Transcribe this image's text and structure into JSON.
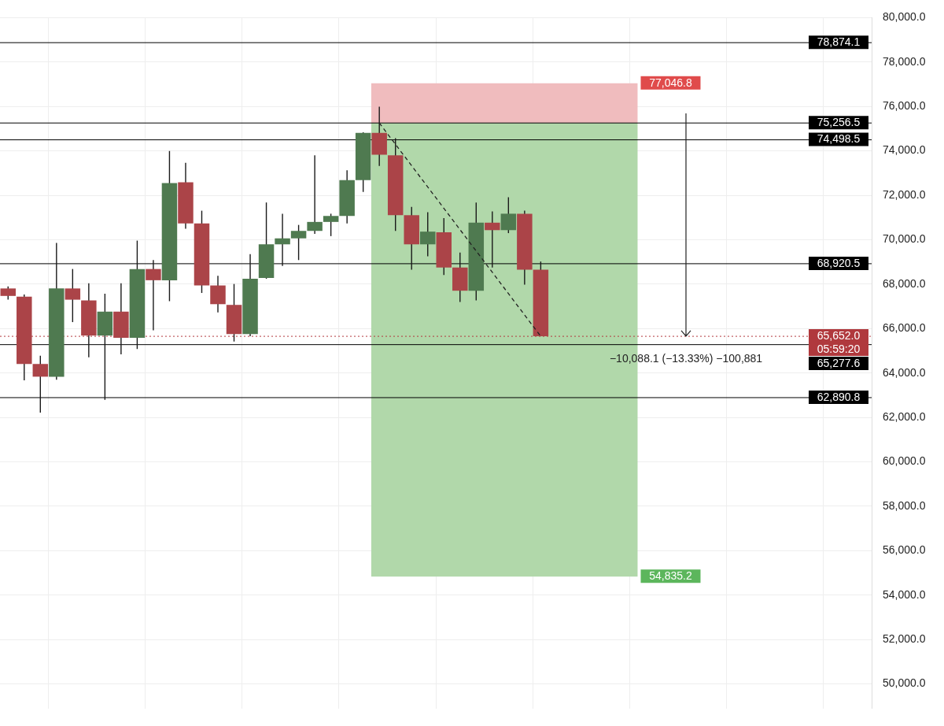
{
  "chart_data": {
    "type": "candlestick",
    "categories": [
      null,
      null,
      null,
      null,
      null,
      null,
      null,
      null,
      null,
      null,
      null,
      null,
      null,
      null,
      null,
      null,
      null,
      null,
      null,
      null,
      null,
      null,
      null,
      null,
      null,
      null,
      null,
      null,
      null,
      null,
      null,
      null,
      null,
      null,
      null,
      null,
      null,
      null,
      null,
      null,
      null,
      null,
      null,
      null,
      null,
      null,
      null,
      null,
      null,
      null,
      null,
      null,
      null,
      null
    ],
    "ohlc": [
      [
        67806,
        67900,
        67300,
        67470
      ],
      [
        67436,
        67537,
        63666,
        64406
      ],
      [
        64406,
        64776,
        62219,
        63834
      ],
      [
        63834,
        69860,
        63700,
        67806
      ],
      [
        67806,
        68682,
        66291,
        67301
      ],
      [
        67268,
        68042,
        64709,
        65686
      ],
      [
        65686,
        67571,
        62791,
        66763
      ],
      [
        66763,
        68042,
        64844,
        65585
      ],
      [
        65585,
        69960,
        65080,
        68682
      ],
      [
        68682,
        69085,
        65921,
        68177
      ],
      [
        68177,
        73999,
        67234,
        72552
      ],
      [
        72586,
        73461,
        70499,
        70735
      ],
      [
        70735,
        71307,
        67604,
        67941
      ],
      [
        67941,
        68379,
        66729,
        67099
      ],
      [
        67066,
        68008,
        65417,
        65753
      ],
      [
        65753,
        69355,
        65652,
        68244
      ],
      [
        68278,
        71677,
        68244,
        69793
      ],
      [
        69793,
        71172,
        68816,
        70062
      ],
      [
        70062,
        70667,
        69085,
        70398
      ],
      [
        70398,
        73798,
        70264,
        70802
      ],
      [
        70802,
        71172,
        70163,
        71071
      ],
      [
        71071,
        73124,
        70735,
        72687
      ],
      [
        72687,
        74841,
        72148,
        74807
      ],
      [
        74807,
        75986,
        73326,
        73831
      ],
      [
        73798,
        74571,
        70398,
        71105
      ],
      [
        71105,
        71475,
        68648,
        69793
      ],
      [
        69793,
        71240,
        69254,
        70365
      ],
      [
        70331,
        70970,
        68413,
        68749
      ],
      [
        68749,
        69422,
        67200,
        67705
      ],
      [
        67705,
        71677,
        67268,
        70768
      ],
      [
        70768,
        71273,
        68749,
        70432
      ],
      [
        70432,
        71913,
        70297,
        71172
      ],
      [
        71172,
        71307,
        67974,
        68648
      ],
      [
        68648,
        69018,
        65652,
        65652
      ],
      null,
      null,
      null,
      null,
      null,
      null,
      null,
      null,
      null,
      null,
      null,
      null,
      null,
      null,
      null,
      null,
      null,
      null,
      null,
      null
    ],
    "colors": [
      "#ab4448",
      "#ab4448",
      "#ab4448",
      "#4f7a50",
      "#ab4448",
      "#ab4448",
      "#4f7a50",
      "#ab4448",
      "#4f7a50",
      "#ab4448",
      "#4f7a50",
      "#ab4448",
      "#ab4448",
      "#ab4448",
      "#ab4448",
      "#4f7a50",
      "#4f7a50",
      "#4f7a50",
      "#4f7a50",
      "#4f7a50",
      "#4f7a50",
      "#4f7a50",
      "#4f7a50",
      "#ab4448",
      "#ab4448",
      "#ab4448",
      "#4f7a50",
      "#ab4448",
      "#ab4448",
      "#4f7a50",
      "#ab4448",
      "#4f7a50",
      "#ab4448",
      "#ab4448",
      null,
      null,
      null,
      null,
      null,
      null,
      null,
      null,
      null,
      null,
      null,
      null,
      null,
      null,
      null,
      null,
      null,
      null,
      null,
      null
    ],
    "series": [
      {
        "type": "line",
        "line_style": "dashed",
        "color": "#222222",
        "values": [
          null,
          null,
          null,
          null,
          null,
          null,
          null,
          null,
          null,
          null,
          null,
          null,
          null,
          null,
          null,
          null,
          null,
          null,
          null,
          null,
          null,
          null,
          null,
          75256.5,
          null,
          null,
          null,
          null,
          null,
          null,
          null,
          null,
          null,
          65652.0,
          null,
          null,
          null,
          null,
          null,
          null,
          null,
          null,
          null,
          null,
          null,
          null,
          null,
          null,
          null,
          null,
          null,
          null,
          null,
          null
        ]
      }
    ],
    "ylim": [
      48900,
      80000
    ],
    "yticks": [
      {
        "value": 50000,
        "label": "50,000.0"
      },
      {
        "value": 52000,
        "label": "52,000.0"
      },
      {
        "value": 54000,
        "label": "54,000.0"
      },
      {
        "value": 56000,
        "label": "56,000.0"
      },
      {
        "value": 58000,
        "label": "58,000.0"
      },
      {
        "value": 60000,
        "label": "60,000.0"
      },
      {
        "value": 62000,
        "label": "62,000.0"
      },
      {
        "value": 64000,
        "label": "64,000.0"
      },
      {
        "value": 66000,
        "label": "66,000.0"
      },
      {
        "value": 68000,
        "label": "68,000.0"
      },
      {
        "value": 70000,
        "label": "70,000.0"
      },
      {
        "value": 72000,
        "label": "72,000.0"
      },
      {
        "value": 74000,
        "label": "74,000.0"
      },
      {
        "value": 76000,
        "label": "76,000.0"
      },
      {
        "value": 78000,
        "label": "78,000.0"
      },
      {
        "value": 80000,
        "label": "80,000.0"
      }
    ],
    "grid": true,
    "legend": false,
    "bands": [
      {
        "axis": "y",
        "from": 75256.5,
        "to": 77046.8,
        "label": "77,046.8",
        "color": "#f0bcbe"
      },
      {
        "axis": "y",
        "from": 54835.2,
        "to": 75256.5,
        "label": "54,835.2",
        "color": "#b1d8aa"
      }
    ],
    "ref_lines": [
      {
        "axis": "y",
        "value": 78874.1,
        "label": "78,874.1",
        "color": "#000000"
      },
      {
        "axis": "y",
        "value": 75256.5,
        "label": "75,256.5",
        "color": "#000000"
      },
      {
        "axis": "y",
        "value": 74498.5,
        "label": "74,498.5",
        "color": "#000000"
      },
      {
        "axis": "y",
        "value": 68920.5,
        "label": "68,920.5",
        "color": "#000000"
      },
      {
        "axis": "y",
        "value": 65652.0,
        "label": "65,652.0\n05:59:20",
        "color": "#b23a3e",
        "line_style": "dotted"
      },
      {
        "axis": "y",
        "value": 65277.6,
        "label": "65,277.6",
        "color": "#000000"
      },
      {
        "axis": "y",
        "value": 62890.8,
        "label": "62,890.8",
        "color": "#000000"
      }
    ],
    "annotations": [
      "−10,088.1 (−13.33%) −100,881"
    ]
  }
}
